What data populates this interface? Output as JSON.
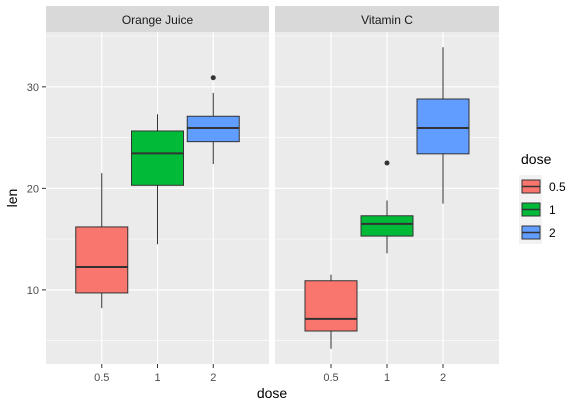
{
  "chart_data": {
    "type": "boxplot",
    "facet_variable": "supp",
    "panels": [
      {
        "label": "Orange Juice",
        "boxes": [
          {
            "dose": "0.5",
            "min": 8.2,
            "q1": 9.7,
            "median": 12.25,
            "q3": 16.2,
            "max": 21.5,
            "outliers": []
          },
          {
            "dose": "1",
            "min": 14.5,
            "q1": 20.3,
            "median": 23.45,
            "q3": 25.65,
            "max": 27.3,
            "outliers": []
          },
          {
            "dose": "2",
            "min": 22.4,
            "q1": 24.6,
            "median": 25.95,
            "q3": 27.1,
            "max": 29.4,
            "outliers": [
              30.9
            ]
          }
        ]
      },
      {
        "label": "Vitamin C",
        "boxes": [
          {
            "dose": "0.5",
            "min": 4.2,
            "q1": 5.95,
            "median": 7.15,
            "q3": 10.9,
            "max": 11.5,
            "outliers": []
          },
          {
            "dose": "1",
            "min": 13.6,
            "q1": 15.3,
            "median": 16.5,
            "q3": 17.3,
            "max": 18.8,
            "outliers": [
              22.5
            ]
          },
          {
            "dose": "2",
            "min": 18.5,
            "q1": 23.4,
            "median": 25.95,
            "q3": 28.8,
            "max": 33.9,
            "outliers": []
          }
        ]
      }
    ],
    "categories": [
      "0.5",
      "1",
      "2"
    ],
    "xlabel": "dose",
    "ylabel": "len",
    "ylim": [
      2.7,
      35.4
    ],
    "y_ticks": [
      10,
      20,
      30
    ],
    "grid": true,
    "legend": {
      "title": "dose",
      "position": "right",
      "entries": [
        {
          "label": "0.5",
          "color": "#F8766D"
        },
        {
          "label": "1",
          "color": "#00BA38"
        },
        {
          "label": "2",
          "color": "#619CFF"
        }
      ]
    },
    "colors": {
      "panel_background": "#EBEBEB",
      "strip_background": "#D9D9D9",
      "grid_major": "#FFFFFF",
      "box_outline": "#333333"
    }
  }
}
